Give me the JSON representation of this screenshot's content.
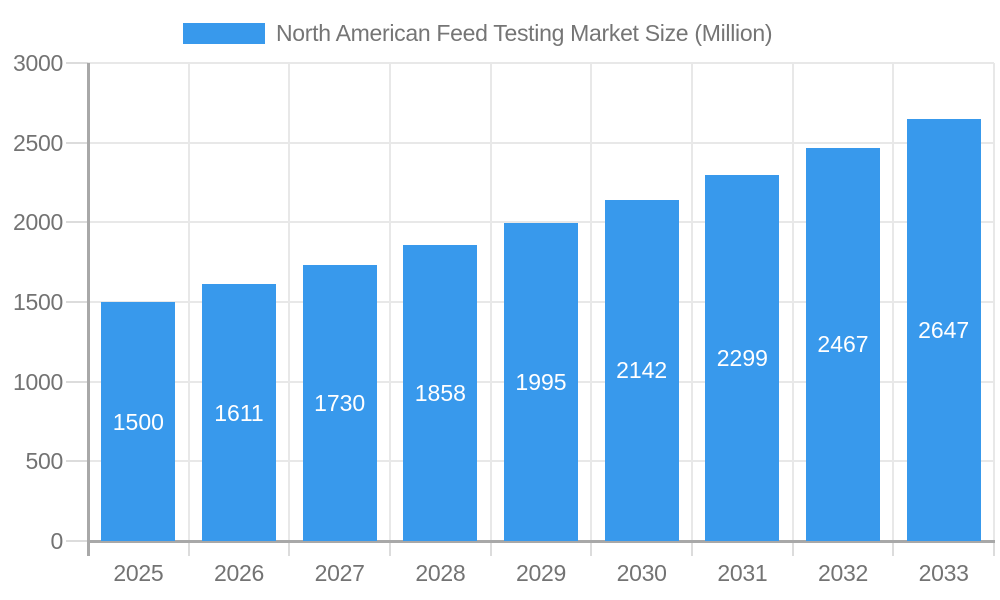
{
  "legend": {
    "label": "North American Feed Testing Market Size (Million)"
  },
  "colors": {
    "bar": "#3899EC",
    "bar_label_text": "#FFFFFF",
    "grid": "#E8E8E8",
    "axis": "#A8A8A8",
    "tick": "#DCDCDC",
    "axis_text": "#737373",
    "legend_text": "#757575"
  },
  "chart_data": {
    "type": "bar",
    "title": "North American Feed Testing Market Size (Million)",
    "categories": [
      "2025",
      "2026",
      "2027",
      "2028",
      "2029",
      "2030",
      "2031",
      "2032",
      "2033"
    ],
    "values": [
      1500,
      1611,
      1730,
      1858,
      1995,
      2142,
      2299,
      2467,
      2647
    ],
    "xlabel": "",
    "ylabel": "",
    "ylim": [
      0,
      3000
    ],
    "yticks": [
      0,
      500,
      1000,
      1500,
      2000,
      2500,
      3000
    ],
    "grid": true,
    "legend_position": "top",
    "value_labels": "inside-center"
  }
}
